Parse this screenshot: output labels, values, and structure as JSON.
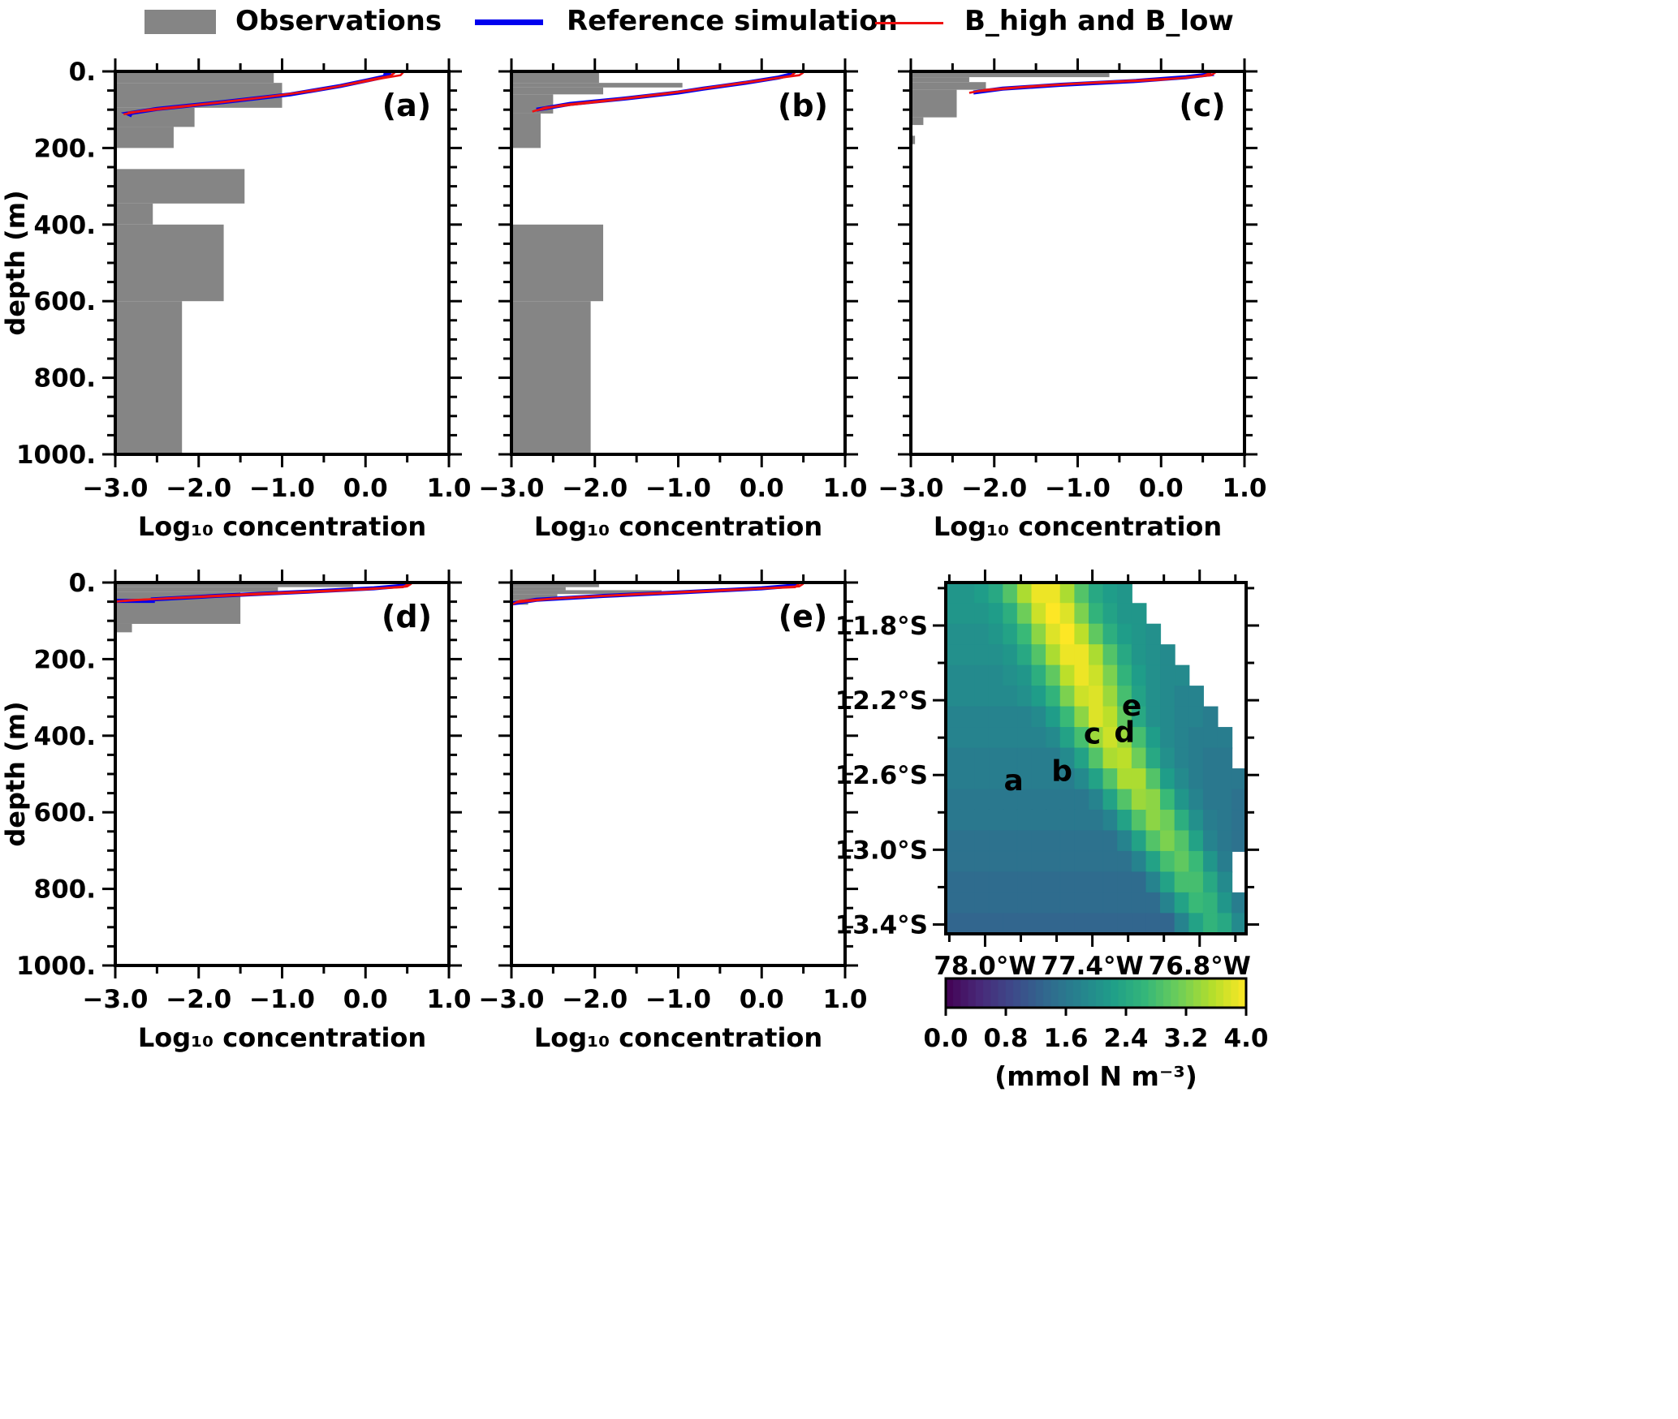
{
  "legend": {
    "observations": "Observations",
    "reference": "Reference simulation",
    "sensitivity": "B_high and B_low"
  },
  "colors": {
    "gray": "#858585",
    "blue": "#0000ee",
    "red": "#ee1111",
    "frame": "#000000",
    "viridis": [
      "#440154",
      "#482878",
      "#3e4989",
      "#31688e",
      "#26828e",
      "#1f9e89",
      "#35b779",
      "#6ece58",
      "#b5de2b",
      "#fde725"
    ]
  },
  "chart_data": {
    "type": "profiles+heatmap",
    "axes": {
      "x_label": "Log₁₀ concentration",
      "y_label": "depth (m)",
      "x_range": [
        -3,
        1
      ],
      "y_range": [
        0,
        1000
      ],
      "x_ticks": [
        {
          "v": -3,
          "label": "−3.0"
        },
        {
          "v": -2,
          "label": "−2.0"
        },
        {
          "v": -1,
          "label": "−1.0"
        },
        {
          "v": 0,
          "label": "0.0"
        },
        {
          "v": 1,
          "label": "1.0"
        }
      ],
      "x_minor": [
        -2.5,
        -1.5,
        -0.5,
        0.5
      ],
      "y_ticks": [
        {
          "v": 0,
          "label": "0."
        },
        {
          "v": 200,
          "label": "200."
        },
        {
          "v": 400,
          "label": "400."
        },
        {
          "v": 600,
          "label": "600."
        },
        {
          "v": 800,
          "label": "800."
        },
        {
          "v": 1000,
          "label": "1000."
        }
      ],
      "y_minor": [
        50,
        100,
        150,
        250,
        300,
        350,
        450,
        500,
        550,
        650,
        700,
        750,
        850,
        900,
        950
      ]
    },
    "profiles": [
      {
        "id": "a",
        "label": "(a)",
        "bars": [
          [
            0,
            30,
            -1.1
          ],
          [
            30,
            95,
            -1.0
          ],
          [
            95,
            145,
            -2.05
          ],
          [
            145,
            200,
            -2.3
          ],
          [
            255,
            345,
            -1.45
          ],
          [
            345,
            400,
            -2.55
          ],
          [
            400,
            600,
            -1.7
          ],
          [
            600,
            1000,
            -2.2
          ]
        ],
        "blue": [
          [
            0.22,
            3
          ],
          [
            0.28,
            8
          ],
          [
            0.22,
            14
          ],
          [
            0.05,
            22
          ],
          [
            -0.3,
            38
          ],
          [
            -0.9,
            60
          ],
          [
            -1.7,
            80
          ],
          [
            -2.5,
            98
          ],
          [
            -2.85,
            110
          ],
          [
            -2.8,
            115
          ]
        ],
        "red_high": [
          [
            0.45,
            3
          ],
          [
            0.42,
            10
          ],
          [
            0.2,
            18
          ],
          [
            -0.1,
            30
          ],
          [
            -0.6,
            50
          ],
          [
            -1.3,
            70
          ],
          [
            -2.1,
            90
          ],
          [
            -2.85,
            108
          ]
        ],
        "red_low": [
          [
            0.35,
            3
          ],
          [
            0.3,
            12
          ],
          [
            0.05,
            22
          ],
          [
            -0.35,
            40
          ],
          [
            -1.0,
            62
          ],
          [
            -1.8,
            82
          ],
          [
            -2.6,
            100
          ],
          [
            -2.9,
            112
          ]
        ]
      },
      {
        "id": "b",
        "label": "(b)",
        "bars": [
          [
            0,
            30,
            -1.95
          ],
          [
            30,
            42,
            -0.95
          ],
          [
            42,
            60,
            -1.9
          ],
          [
            60,
            110,
            -2.5
          ],
          [
            110,
            200,
            -2.65
          ],
          [
            400,
            600,
            -1.9
          ],
          [
            600,
            1000,
            -2.05
          ]
        ],
        "blue": [
          [
            0.33,
            3
          ],
          [
            0.35,
            8
          ],
          [
            0.2,
            16
          ],
          [
            -0.2,
            30
          ],
          [
            -0.7,
            45
          ],
          [
            -1.0,
            55
          ],
          [
            -1.6,
            70
          ],
          [
            -2.3,
            85
          ],
          [
            -2.7,
            100
          ]
        ],
        "red_high": [
          [
            0.5,
            3
          ],
          [
            0.45,
            10
          ],
          [
            0.1,
            20
          ],
          [
            -0.4,
            35
          ],
          [
            -0.8,
            48
          ],
          [
            -1.2,
            60
          ],
          [
            -1.9,
            78
          ],
          [
            -2.6,
            95
          ],
          [
            -2.75,
            105
          ]
        ],
        "red_low": [
          [
            0.4,
            3
          ],
          [
            0.35,
            12
          ],
          [
            -0.05,
            25
          ],
          [
            -0.6,
            42
          ],
          [
            -1.05,
            55
          ],
          [
            -1.7,
            72
          ],
          [
            -2.4,
            88
          ],
          [
            -2.7,
            102
          ]
        ]
      },
      {
        "id": "c",
        "label": "(c)",
        "bars": [
          [
            0,
            15,
            -0.62
          ],
          [
            15,
            28,
            -2.3
          ],
          [
            28,
            48,
            -2.1
          ],
          [
            48,
            120,
            -2.45
          ],
          [
            120,
            140,
            -2.85
          ],
          [
            168,
            190,
            -2.95
          ]
        ],
        "blue": [
          [
            0.55,
            3
          ],
          [
            0.58,
            8
          ],
          [
            0.3,
            15
          ],
          [
            -0.3,
            25
          ],
          [
            -1.2,
            35
          ],
          [
            -1.9,
            45
          ],
          [
            -2.25,
            55
          ]
        ],
        "red_high": [
          [
            0.65,
            3
          ],
          [
            0.6,
            10
          ],
          [
            0.2,
            18
          ],
          [
            -0.7,
            28
          ],
          [
            -1.5,
            38
          ],
          [
            -2.1,
            48
          ],
          [
            -2.3,
            56
          ]
        ],
        "red_low": [
          [
            0.6,
            3
          ],
          [
            0.5,
            12
          ],
          [
            0.0,
            22
          ],
          [
            -1.0,
            32
          ],
          [
            -1.7,
            42
          ],
          [
            -2.2,
            52
          ]
        ]
      },
      {
        "id": "d",
        "label": "(d)",
        "bars": [
          [
            0,
            12,
            -0.15
          ],
          [
            12,
            25,
            -1.05
          ],
          [
            25,
            108,
            -1.5
          ],
          [
            108,
            130,
            -2.8
          ]
        ],
        "blue": [
          [
            0.5,
            3
          ],
          [
            0.48,
            8
          ],
          [
            0.1,
            15
          ],
          [
            -0.8,
            25
          ],
          [
            -1.8,
            35
          ],
          [
            -2.55,
            44
          ],
          [
            -2.55,
            48
          ],
          [
            -3.0,
            48
          ]
        ],
        "red_high": [
          [
            0.55,
            3
          ],
          [
            0.5,
            10
          ],
          [
            0.0,
            18
          ],
          [
            -1.0,
            28
          ],
          [
            -2.0,
            38
          ],
          [
            -2.8,
            46
          ],
          [
            -3.0,
            50
          ]
        ],
        "red_low": [
          [
            0.52,
            3
          ],
          [
            0.45,
            12
          ],
          [
            -0.3,
            20
          ],
          [
            -1.4,
            30
          ],
          [
            -2.3,
            40
          ],
          [
            -2.9,
            48
          ]
        ]
      },
      {
        "id": "e",
        "label": "(e)",
        "bars": [
          [
            0,
            12,
            -1.95
          ],
          [
            12,
            20,
            -2.35
          ],
          [
            20,
            30,
            -1.2
          ],
          [
            30,
            45,
            -2.45
          ],
          [
            45,
            58,
            -2.8
          ]
        ],
        "blue": [
          [
            0.42,
            3
          ],
          [
            0.4,
            8
          ],
          [
            0.0,
            15
          ],
          [
            -0.9,
            25
          ],
          [
            -1.9,
            35
          ],
          [
            -2.7,
            45
          ],
          [
            -3.0,
            55
          ]
        ],
        "red_high": [
          [
            0.5,
            3
          ],
          [
            0.45,
            10
          ],
          [
            -0.2,
            18
          ],
          [
            -1.2,
            28
          ],
          [
            -2.2,
            38
          ],
          [
            -2.9,
            48
          ],
          [
            -3.0,
            58
          ]
        ],
        "red_low": [
          [
            0.45,
            3
          ],
          [
            0.4,
            12
          ],
          [
            -0.5,
            20
          ],
          [
            -1.5,
            30
          ],
          [
            -2.5,
            42
          ],
          [
            -2.95,
            52
          ]
        ]
      }
    ],
    "map": {
      "lon_left_w": 78.22,
      "lon_right_w": 76.54,
      "lat_top_s": 11.57,
      "lat_bottom_s": 13.45,
      "lat_ticks": [
        {
          "v": 11.8,
          "label": "11.8°S"
        },
        {
          "v": 12.2,
          "label": "12.2°S"
        },
        {
          "v": 12.6,
          "label": "12.6°S"
        },
        {
          "v": 13.0,
          "label": "13.0°S"
        },
        {
          "v": 13.4,
          "label": "13.4°S"
        }
      ],
      "lat_minor": [
        11.6,
        12.0,
        12.4,
        12.8,
        13.2
      ],
      "lon_ticks": [
        {
          "v": 78.0,
          "label": "78.0°W"
        },
        {
          "v": 77.4,
          "label": "77.4°W"
        },
        {
          "v": 76.8,
          "label": "76.8°W"
        }
      ],
      "lon_minor": [
        78.2,
        77.8,
        77.6,
        77.2,
        77.0,
        76.6
      ],
      "letters": [
        {
          "id": "a",
          "lon_w": 77.84,
          "lat_s": 12.63
        },
        {
          "id": "b",
          "lon_w": 77.57,
          "lat_s": 12.58
        },
        {
          "id": "c",
          "lon_w": 77.4,
          "lat_s": 12.38
        },
        {
          "id": "d",
          "lon_w": 77.22,
          "lat_s": 12.37
        },
        {
          "id": "e",
          "lon_w": 77.18,
          "lat_s": 12.23
        }
      ],
      "value_range": [
        0,
        4
      ],
      "grid": [
        [
          2.1,
          2.1,
          2.2,
          2.4,
          2.9,
          3.5,
          3.9,
          3.9,
          3.5,
          2.9,
          2.4,
          2.2,
          2.1,
          null,
          null,
          null,
          null,
          null,
          null,
          null,
          null
        ],
        [
          2.1,
          2.1,
          2.1,
          2.2,
          2.5,
          3.1,
          3.7,
          4.0,
          3.8,
          3.2,
          2.6,
          2.3,
          2.1,
          2.1,
          null,
          null,
          null,
          null,
          null,
          null,
          null
        ],
        [
          2.0,
          2.0,
          2.0,
          2.1,
          2.3,
          2.7,
          3.3,
          3.8,
          4.0,
          3.6,
          3.0,
          2.5,
          2.2,
          2.1,
          2.0,
          null,
          null,
          null,
          null,
          null,
          null
        ],
        [
          2.0,
          2.0,
          2.0,
          2.0,
          2.1,
          2.4,
          2.9,
          3.5,
          3.9,
          3.9,
          3.5,
          2.9,
          2.4,
          2.1,
          2.0,
          1.9,
          null,
          null,
          null,
          null,
          null
        ],
        [
          1.9,
          1.9,
          1.9,
          1.9,
          2.0,
          2.1,
          2.5,
          3.0,
          3.6,
          3.9,
          3.7,
          3.2,
          2.6,
          2.2,
          2.0,
          1.9,
          1.9,
          null,
          null,
          null,
          null
        ],
        [
          1.9,
          1.9,
          1.9,
          1.9,
          1.9,
          2.0,
          2.2,
          2.6,
          3.2,
          3.7,
          3.8,
          3.4,
          2.8,
          2.3,
          2.0,
          1.9,
          1.8,
          1.8,
          null,
          null,
          null
        ],
        [
          1.8,
          1.8,
          1.8,
          1.8,
          1.8,
          1.8,
          1.9,
          2.2,
          2.7,
          3.3,
          3.8,
          3.6,
          3.0,
          2.4,
          2.0,
          1.9,
          1.8,
          1.8,
          1.7,
          null,
          null
        ],
        [
          1.8,
          1.8,
          1.8,
          1.8,
          1.8,
          1.8,
          1.8,
          1.9,
          2.3,
          2.8,
          3.4,
          3.7,
          3.4,
          2.8,
          2.2,
          1.9,
          1.8,
          1.7,
          1.7,
          1.7,
          null
        ],
        [
          1.7,
          1.7,
          1.7,
          1.7,
          1.7,
          1.7,
          1.7,
          1.7,
          1.9,
          2.3,
          2.9,
          3.5,
          3.6,
          3.1,
          2.4,
          2.0,
          1.8,
          1.7,
          1.6,
          1.6,
          null
        ],
        [
          1.7,
          1.7,
          1.7,
          1.7,
          1.7,
          1.7,
          1.7,
          1.7,
          1.7,
          1.9,
          2.3,
          2.9,
          3.5,
          3.5,
          2.9,
          2.2,
          1.9,
          1.7,
          1.6,
          1.6,
          1.6
        ],
        [
          1.6,
          1.6,
          1.6,
          1.6,
          1.6,
          1.6,
          1.6,
          1.6,
          1.6,
          1.6,
          1.8,
          2.3,
          2.9,
          3.4,
          3.3,
          2.7,
          2.1,
          1.8,
          1.6,
          1.6,
          1.5
        ],
        [
          1.6,
          1.6,
          1.6,
          1.6,
          1.6,
          1.6,
          1.6,
          1.6,
          1.6,
          1.6,
          1.6,
          1.8,
          2.3,
          2.9,
          3.3,
          3.1,
          2.5,
          2.0,
          1.7,
          1.6,
          1.5
        ],
        [
          1.5,
          1.5,
          1.5,
          1.5,
          1.5,
          1.5,
          1.5,
          1.5,
          1.5,
          1.5,
          1.5,
          1.5,
          1.8,
          2.3,
          2.9,
          3.2,
          2.9,
          2.3,
          1.8,
          1.6,
          1.5
        ],
        [
          1.5,
          1.5,
          1.5,
          1.5,
          1.5,
          1.5,
          1.5,
          1.5,
          1.5,
          1.5,
          1.5,
          1.5,
          1.5,
          1.8,
          2.3,
          2.8,
          3.0,
          2.7,
          2.1,
          1.7,
          null
        ],
        [
          1.4,
          1.4,
          1.4,
          1.4,
          1.4,
          1.4,
          1.4,
          1.4,
          1.4,
          1.4,
          1.4,
          1.4,
          1.4,
          1.4,
          1.8,
          2.3,
          2.8,
          2.8,
          2.4,
          1.9,
          null
        ],
        [
          1.4,
          1.4,
          1.4,
          1.4,
          1.4,
          1.4,
          1.4,
          1.4,
          1.4,
          1.4,
          1.4,
          1.4,
          1.4,
          1.4,
          1.4,
          1.8,
          2.3,
          2.7,
          2.6,
          2.1,
          1.7
        ],
        [
          1.3,
          1.3,
          1.3,
          1.3,
          1.3,
          1.3,
          1.3,
          1.3,
          1.3,
          1.3,
          1.3,
          1.3,
          1.3,
          1.3,
          1.3,
          1.3,
          1.8,
          2.3,
          2.6,
          2.4,
          1.9
        ]
      ],
      "colorbar": {
        "ticks": [
          {
            "v": 0.0,
            "label": "0.0"
          },
          {
            "v": 0.8,
            "label": "0.8"
          },
          {
            "v": 1.6,
            "label": "1.6"
          },
          {
            "v": 2.4,
            "label": "2.4"
          },
          {
            "v": 3.2,
            "label": "3.2"
          },
          {
            "v": 4.0,
            "label": "4.0"
          }
        ],
        "label": "(mmol N m⁻³)"
      }
    }
  }
}
